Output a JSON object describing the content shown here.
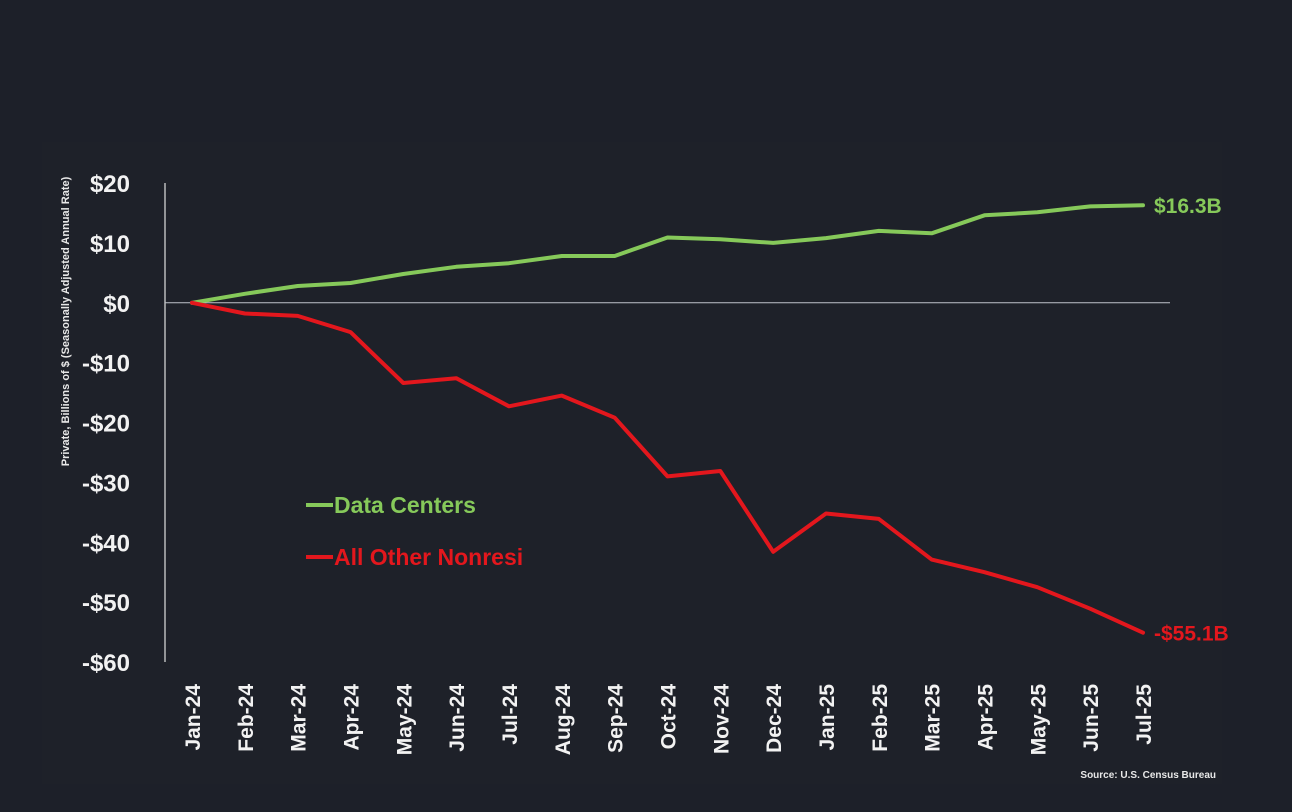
{
  "chart_data": {
    "type": "line",
    "title": "",
    "xlabel": "",
    "ylabel": "Private, Billions of $ (Seasonally Adjusted Annual Rate)",
    "ylim": [
      -60,
      20
    ],
    "yticks": [
      20,
      10,
      0,
      -10,
      -20,
      -30,
      -40,
      -50,
      -60
    ],
    "ytick_labels": [
      "$20",
      "$10",
      "$0",
      "-$10",
      "-$20",
      "-$30",
      "-$40",
      "-$50",
      "-$60"
    ],
    "categories": [
      "Jan-24",
      "Feb-24",
      "Mar-24",
      "Apr-24",
      "May-24",
      "Jun-24",
      "Jul-24",
      "Aug-24",
      "Sep-24",
      "Oct-24",
      "Nov-24",
      "Dec-24",
      "Jan-25",
      "Feb-25",
      "Mar-25",
      "Apr-25",
      "May-25",
      "Jun-25",
      "Jul-25"
    ],
    "series": [
      {
        "name": "Data Centers",
        "color": "#86c95a",
        "values": [
          0,
          1.5,
          2.8,
          3.3,
          4.8,
          6.0,
          6.6,
          7.8,
          7.8,
          10.9,
          10.6,
          10.0,
          10.8,
          12.0,
          11.6,
          14.6,
          15.1,
          16.1,
          16.3
        ],
        "end_label": "$16.3B"
      },
      {
        "name": "All Other Nonresi",
        "color": "#e3171d",
        "values": [
          0,
          -1.8,
          -2.2,
          -4.9,
          -13.4,
          -12.6,
          -17.3,
          -15.5,
          -19.2,
          -29.0,
          -28.1,
          -41.6,
          -35.2,
          -36.1,
          -42.9,
          -45.0,
          -47.5,
          -51.1,
          -55.1
        ],
        "end_label": "-$55.1B"
      }
    ],
    "legend_position": "lower-left",
    "zero_line": true,
    "grid": false,
    "source": "Source: U.S. Census Bureau"
  }
}
